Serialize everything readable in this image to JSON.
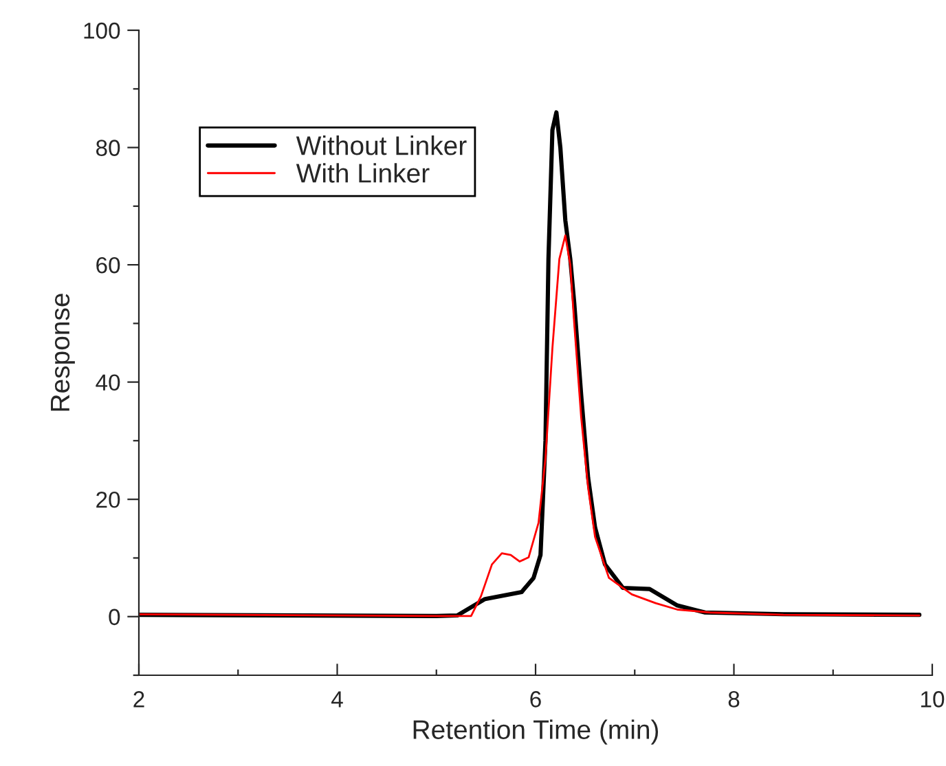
{
  "chart_data": {
    "type": "line",
    "xlabel": "Retention Time (min)",
    "ylabel": "Response",
    "xlim": [
      2,
      10
    ],
    "ylim": [
      -10,
      100
    ],
    "xticks": [
      2,
      {
        "value": 3,
        "label": null
      },
      4,
      {
        "value": 5,
        "label": null
      },
      6,
      {
        "value": 7,
        "label": null
      },
      8,
      {
        "value": 9,
        "label": null
      },
      10
    ],
    "yticks": [
      {
        "value": -10,
        "label": null
      },
      0,
      {
        "value": 10,
        "label": null
      },
      20,
      {
        "value": 30,
        "label": null
      },
      40,
      {
        "value": 50,
        "label": null
      },
      60,
      {
        "value": 70,
        "label": null
      },
      80,
      {
        "value": 90,
        "label": null
      },
      100
    ],
    "grid": false,
    "legend": "top left",
    "marker": "none",
    "line_style": "solid",
    "series": [
      {
        "name": "Without Linker",
        "color": "#000000",
        "x": [
          2,
          5.0,
          5.21,
          5.49,
          5.86,
          5.98,
          6.05,
          6.1,
          6.13,
          6.17,
          6.21,
          6.25,
          6.3,
          6.35,
          6.39,
          6.46,
          6.53,
          6.6,
          6.7,
          6.88,
          7.15,
          7.43,
          7.71,
          8.5,
          9.87
        ],
        "values": [
          0.3,
          0.1,
          0.2,
          3.0,
          4.2,
          6.6,
          10.5,
          30,
          61,
          83,
          86,
          80,
          67.6,
          61,
          53.5,
          37.8,
          23.7,
          15.2,
          8.9,
          4.9,
          4.7,
          1.9,
          0.7,
          0.4,
          0.3
        ]
      },
      {
        "name": "With Linker",
        "color": "#ff0000",
        "x": [
          2,
          5.0,
          5.35,
          5.45,
          5.56,
          5.66,
          5.75,
          5.84,
          5.93,
          6.03,
          6.1,
          6.17,
          6.24,
          6.3,
          6.35,
          6.39,
          6.46,
          6.53,
          6.6,
          6.74,
          6.97,
          7.21,
          7.43,
          7.76,
          8.5,
          9.87
        ],
        "values": [
          0.4,
          0.1,
          0.1,
          3.5,
          8.9,
          10.8,
          10.5,
          9.4,
          10.1,
          16,
          27,
          45.8,
          61,
          65,
          60,
          50,
          34,
          22,
          13.6,
          6.6,
          3.8,
          2.3,
          1.2,
          0.7,
          0.3,
          0.2
        ]
      }
    ]
  }
}
